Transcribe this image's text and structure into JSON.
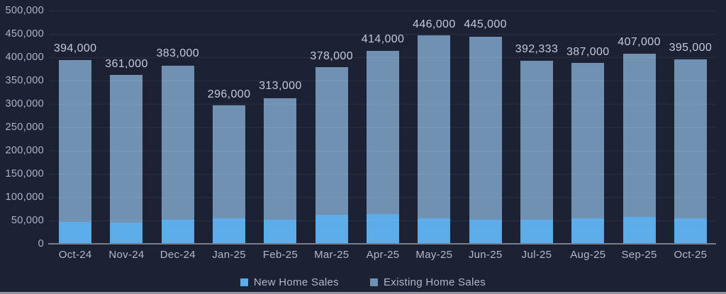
{
  "colors": {
    "background": "#1C2134",
    "new_home_sales": "#5BACE8",
    "existing_home_sales": "#7191B2",
    "axis_text": "#AEB3C9",
    "data_label_text": "#C4C9DB",
    "baseline": "#787D8A"
  },
  "chart_data": {
    "type": "bar",
    "stacked": true,
    "title": "",
    "xlabel": "",
    "ylabel": "",
    "categories": [
      "Oct-24",
      "Nov-24",
      "Dec-24",
      "Jan-25",
      "Feb-25",
      "Mar-25",
      "Apr-25",
      "May-25",
      "Jun-25",
      "Jul-25",
      "Aug-25",
      "Sep-25",
      "Oct-25"
    ],
    "series": [
      {
        "name": "New Home Sales",
        "color": "#5BACE8",
        "values": [
          47000,
          45000,
          52000,
          54000,
          52000,
          62000,
          64000,
          54000,
          52000,
          52000,
          54000,
          57000,
          54000
        ]
      },
      {
        "name": "Existing Home Sales",
        "color": "#7191B2",
        "values": [
          347000,
          316000,
          331000,
          242000,
          261000,
          316000,
          350000,
          392000,
          393000,
          340333,
          333000,
          350000,
          341000
        ]
      }
    ],
    "totals": [
      394000,
      361000,
      383000,
      296000,
      313000,
      378000,
      414000,
      446000,
      445000,
      392333,
      387000,
      407000,
      395000
    ],
    "total_labels": [
      "394,000",
      "361,000",
      "383,000",
      "296,000",
      "313,000",
      "378,000",
      "414,000",
      "446,000",
      "445,000",
      "392,333",
      "387,000",
      "407,000",
      "395,000"
    ],
    "ylim": [
      0,
      500000
    ],
    "ytick_step": 50000,
    "ytick_labels": [
      "0",
      "50,000",
      "100,000",
      "150,000",
      "200,000",
      "250,000",
      "300,000",
      "350,000",
      "400,000",
      "450,000",
      "500,000"
    ],
    "grid": true,
    "legend_position": "bottom"
  }
}
